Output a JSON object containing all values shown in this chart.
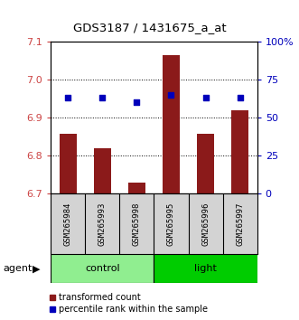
{
  "title": "GDS3187 / 1431675_a_at",
  "samples": [
    "GSM265984",
    "GSM265993",
    "GSM265998",
    "GSM265995",
    "GSM265996",
    "GSM265997"
  ],
  "bar_values": [
    6.858,
    6.82,
    6.73,
    7.065,
    6.858,
    6.92
  ],
  "percentile_values": [
    63,
    63,
    60,
    65,
    63,
    63
  ],
  "ylim_left": [
    6.7,
    7.1
  ],
  "ylim_right": [
    0,
    100
  ],
  "yticks_left": [
    6.7,
    6.8,
    6.9,
    7.0,
    7.1
  ],
  "yticks_right": [
    0,
    25,
    50,
    75,
    100
  ],
  "bar_color": "#8B1A1A",
  "dot_color": "#0000BB",
  "group_control_color": "#90EE90",
  "group_light_color": "#00CC00",
  "agent_label": "agent",
  "legend_items": [
    {
      "label": "transformed count",
      "color": "#8B1A1A"
    },
    {
      "label": "percentile rank within the sample",
      "color": "#0000BB"
    }
  ],
  "sample_box_color": "#D3D3D3",
  "bar_width": 0.5,
  "left_tick_color": "#CC4444",
  "right_tick_color": "#0000BB"
}
